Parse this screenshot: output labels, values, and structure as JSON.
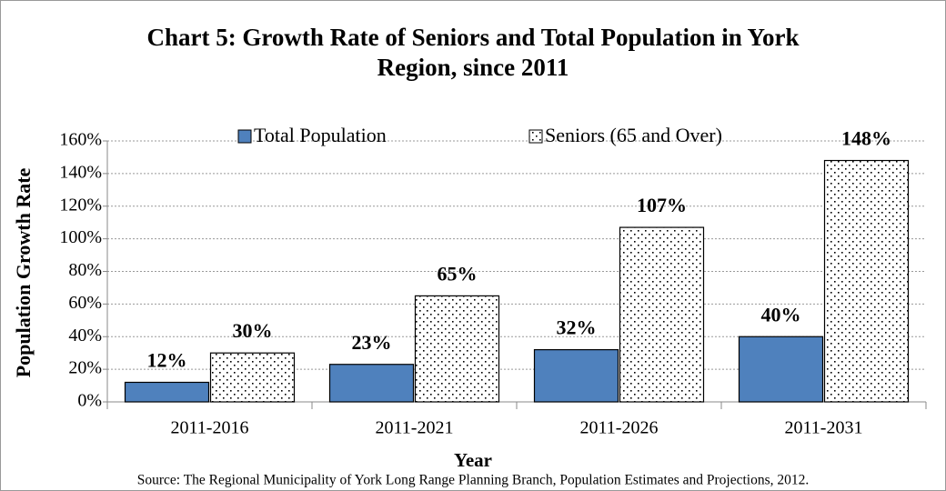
{
  "chart_data": {
    "type": "bar",
    "title": "Chart 5: Growth Rate of Seniors and Total Population in York Region, since 2011",
    "x_label": "Year",
    "y_label": "Population Growth Rate",
    "source": "Source: The Regional Municipality of York Long Range Planning Branch, Population Estimates and Projections, 2012.",
    "categories": [
      "2011-2016",
      "2011-2021",
      "2011-2026",
      "2011-2031"
    ],
    "series": [
      {
        "name": "Total Population",
        "color": "#4f81bd",
        "pattern": "solid",
        "values": [
          12,
          23,
          32,
          40
        ],
        "value_labels": [
          "12%",
          "23%",
          "32%",
          "40%"
        ]
      },
      {
        "name": "Seniors (65 and Over)",
        "color": "#ffffff",
        "pattern": "dots",
        "values": [
          30,
          65,
          107,
          148
        ],
        "value_labels": [
          "30%",
          "65%",
          "107%",
          "148%"
        ]
      }
    ],
    "ylim": [
      0,
      160
    ],
    "yticks": [
      {
        "value": 0,
        "label": "0%"
      },
      {
        "value": 20,
        "label": "20%"
      },
      {
        "value": 40,
        "label": "40%"
      },
      {
        "value": 60,
        "label": "60%"
      },
      {
        "value": 80,
        "label": "80%"
      },
      {
        "value": 100,
        "label": "100%"
      },
      {
        "value": 120,
        "label": "120%"
      },
      {
        "value": 140,
        "label": "140%"
      },
      {
        "value": 160,
        "label": "160%"
      }
    ],
    "grid": true,
    "legend": "top"
  }
}
